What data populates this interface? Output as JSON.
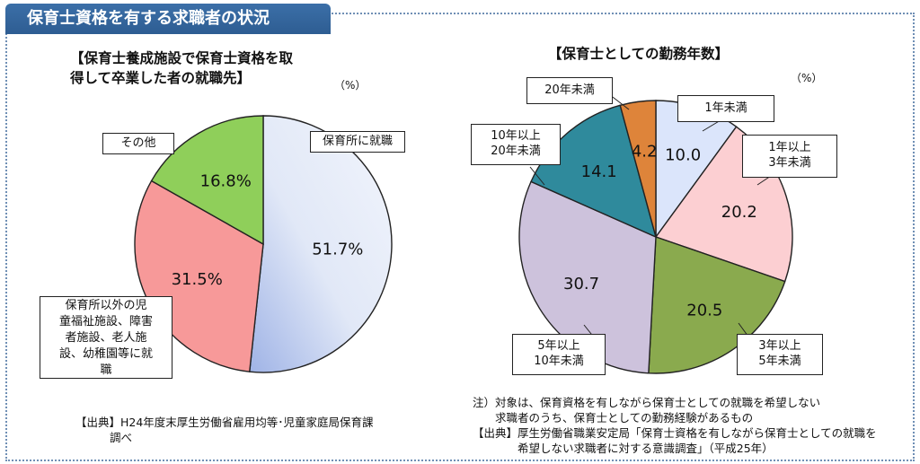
{
  "title": "保育士資格を有する求職者の状況",
  "chart_data": [
    {
      "type": "pie",
      "title_lines": [
        "【保育士養成施設で保育士資格を取",
        "得して卒業した者の就職先】"
      ],
      "unit": "（%）",
      "slices": [
        {
          "label_lines": [
            "保育所に就職"
          ],
          "value": 51.7,
          "value_text": "51.7%",
          "color": "#e3e9f7"
        },
        {
          "label_lines": [
            "保育所以外の児",
            "童福祉施設、障害",
            "者施設、老人施",
            "設、幼稚園等に就",
            "職"
          ],
          "value": 31.5,
          "value_text": "31.5%",
          "color": "#f79999"
        },
        {
          "label_lines": [
            "その他"
          ],
          "value": 16.8,
          "value_text": "16.8%",
          "color": "#8fcf5a"
        }
      ],
      "source_lines": [
        "【出典】H24年度末厚生労働省雇用均等･児童家庭局保育課",
        "調べ"
      ]
    },
    {
      "type": "pie",
      "title": "【保育士としての勤務年数】",
      "unit": "（%）",
      "slices": [
        {
          "label_lines": [
            "1年未満"
          ],
          "value": 10.0,
          "value_text": "10.0",
          "color": "#dbe5fb"
        },
        {
          "label_lines": [
            "1年以上",
            "3年未満"
          ],
          "value": 20.2,
          "value_text": "20.2",
          "color": "#fccfd2"
        },
        {
          "label_lines": [
            "3年以上",
            "5年未満"
          ],
          "value": 20.5,
          "value_text": "20.5",
          "color": "#8aaa4e"
        },
        {
          "label_lines": [
            "5年以上",
            "10年未満"
          ],
          "value": 30.7,
          "value_text": "30.7",
          "color": "#cdc2dc"
        },
        {
          "label_lines": [
            "10年以上",
            "20年未満"
          ],
          "value": 14.1,
          "value_text": "14.1",
          "color": "#2f8a9c"
        },
        {
          "label_lines": [
            "20年未満"
          ],
          "value": 4.2,
          "value_text": "4.2",
          "color": "#de843a"
        }
      ],
      "note_lines": [
        "注）対象は、保育資格を有しながら保育士としての就職を希望しない",
        "　　求職者のうち、保育士としての勤務経験があるもの",
        "【出典】厚生労働省職業安定局「保育士資格を有しながら保育士としての就職を",
        "　　　　希望しない求職者に対する意識調査」（平成25年）"
      ]
    }
  ]
}
